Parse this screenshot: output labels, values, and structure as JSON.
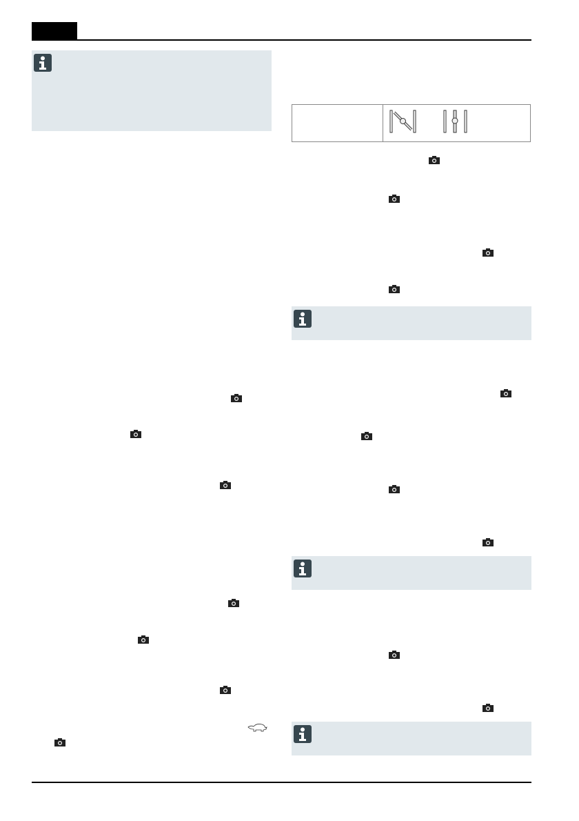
{
  "header": {
    "tab_block_color": "#000000"
  },
  "colors": {
    "info_box_bg": "#e1e8ec",
    "info_icon_bg": "#37474f"
  },
  "icons": {
    "info": "info-icon",
    "camera": "camera-icon",
    "turtle": "turtle-slow-speed-icon",
    "valve_open": "valve-open-icon",
    "valve_closed": "valve-closed-icon"
  }
}
